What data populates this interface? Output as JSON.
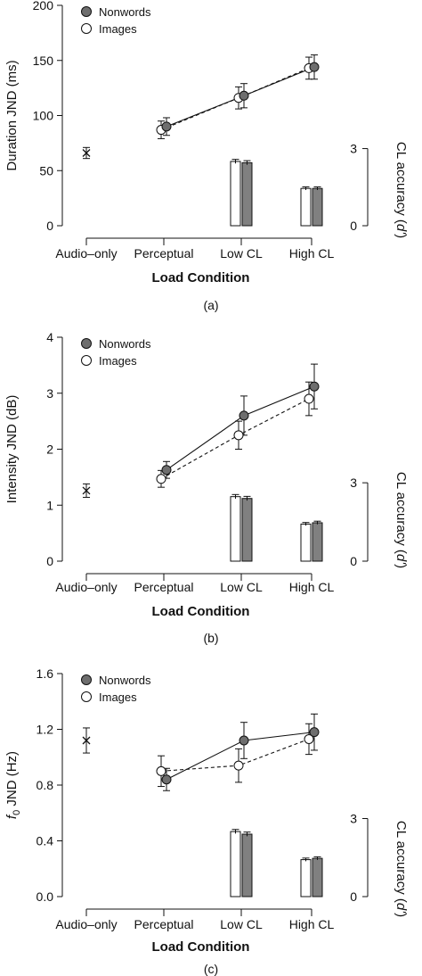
{
  "chart_data": [
    {
      "type": "line",
      "caption": "(a)",
      "xlabel": "Load Condition",
      "ylabel": "Duration JND (ms)",
      "ylabel_right": "CL accuracy (d')",
      "categories": [
        "Audio–only",
        "Perceptual",
        "Low CL",
        "High CL"
      ],
      "ylim": [
        0,
        200
      ],
      "yticks": [
        "0",
        "50",
        "100",
        "150",
        "200"
      ],
      "ytick_values": [
        0,
        50,
        100,
        150,
        200
      ],
      "right_axis": {
        "ticks": [
          "0",
          "3"
        ],
        "tick_values": [
          0,
          3
        ],
        "range_in_left_units": [
          0,
          70
        ]
      },
      "legend": {
        "position": "top-left",
        "nonwords": "Nonwords",
        "images": "Images"
      },
      "audio_only": {
        "value": 66,
        "err": 5
      },
      "series": [
        {
          "name": "Nonwords",
          "style": "solid",
          "marker": "filled",
          "x": [
            1,
            2,
            3
          ],
          "values": [
            90,
            118,
            144
          ],
          "err": [
            8,
            11,
            11
          ]
        },
        {
          "name": "Images",
          "style": "dashed",
          "marker": "open",
          "x": [
            1,
            2,
            3
          ],
          "values": [
            87,
            116,
            143
          ],
          "err": [
            8,
            10,
            10
          ]
        }
      ],
      "bars": {
        "x": [
          2,
          3
        ],
        "images": [
          2.5,
          1.45
        ],
        "nonwords": [
          2.45,
          1.45
        ],
        "err": [
          0.08,
          0.06
        ]
      }
    },
    {
      "type": "line",
      "caption": "(b)",
      "xlabel": "Load Condition",
      "ylabel": "Intensity JND (dB)",
      "ylabel_right": "CL accuracy (d')",
      "categories": [
        "Audio–only",
        "Perceptual",
        "Low CL",
        "High CL"
      ],
      "ylim": [
        0,
        4
      ],
      "yticks": [
        "0",
        "1",
        "2",
        "3",
        "4"
      ],
      "ytick_values": [
        0,
        1,
        2,
        3,
        4
      ],
      "right_axis": {
        "ticks": [
          "0",
          "3"
        ],
        "tick_values": [
          0,
          3
        ],
        "range_in_left_units": [
          0,
          1.4
        ]
      },
      "legend": {
        "position": "top-left",
        "nonwords": "Nonwords",
        "images": "Images"
      },
      "audio_only": {
        "value": 1.26,
        "err": 0.12
      },
      "series": [
        {
          "name": "Nonwords",
          "style": "solid",
          "marker": "filled",
          "x": [
            1,
            2,
            3
          ],
          "values": [
            1.63,
            2.6,
            3.12
          ],
          "err": [
            0.15,
            0.35,
            0.4
          ]
        },
        {
          "name": "Images",
          "style": "dashed",
          "marker": "open",
          "x": [
            1,
            2,
            3
          ],
          "values": [
            1.47,
            2.25,
            2.9
          ],
          "err": [
            0.15,
            0.25,
            0.3
          ]
        }
      ],
      "bars": {
        "x": [
          2,
          3
        ],
        "images": [
          2.47,
          1.42
        ],
        "nonwords": [
          2.4,
          1.47
        ],
        "err": [
          0.08,
          0.06
        ]
      }
    },
    {
      "type": "line",
      "caption": "(c)",
      "xlabel": "Load Condition",
      "ylabel": "f0 JND (Hz)",
      "ylabel_right": "CL accuracy (d')",
      "categories": [
        "Audio–only",
        "Perceptual",
        "Low CL",
        "High CL"
      ],
      "ylim": [
        0,
        1.6
      ],
      "yticks": [
        "0.0",
        "0.4",
        "0.8",
        "1.2",
        "1.6"
      ],
      "ytick_values": [
        0,
        0.4,
        0.8,
        1.2,
        1.6
      ],
      "right_axis": {
        "ticks": [
          "0",
          "3"
        ],
        "tick_values": [
          0,
          3
        ],
        "range_in_left_units": [
          0,
          0.56
        ]
      },
      "legend": {
        "position": "top-left",
        "nonwords": "Nonwords",
        "images": "Images"
      },
      "audio_only": {
        "value": 1.12,
        "err": 0.09
      },
      "series": [
        {
          "name": "Nonwords",
          "style": "solid",
          "marker": "filled",
          "x": [
            1,
            2,
            3
          ],
          "values": [
            0.84,
            1.12,
            1.18
          ],
          "err": [
            0.08,
            0.13,
            0.13
          ]
        },
        {
          "name": "Images",
          "style": "dashed",
          "marker": "open",
          "x": [
            1,
            2,
            3
          ],
          "values": [
            0.9,
            0.94,
            1.13
          ],
          "err": [
            0.11,
            0.12,
            0.11
          ]
        }
      ],
      "bars": {
        "x": [
          2,
          3
        ],
        "images": [
          2.5,
          1.42
        ],
        "nonwords": [
          2.4,
          1.47
        ],
        "err": [
          0.08,
          0.06
        ]
      }
    }
  ]
}
